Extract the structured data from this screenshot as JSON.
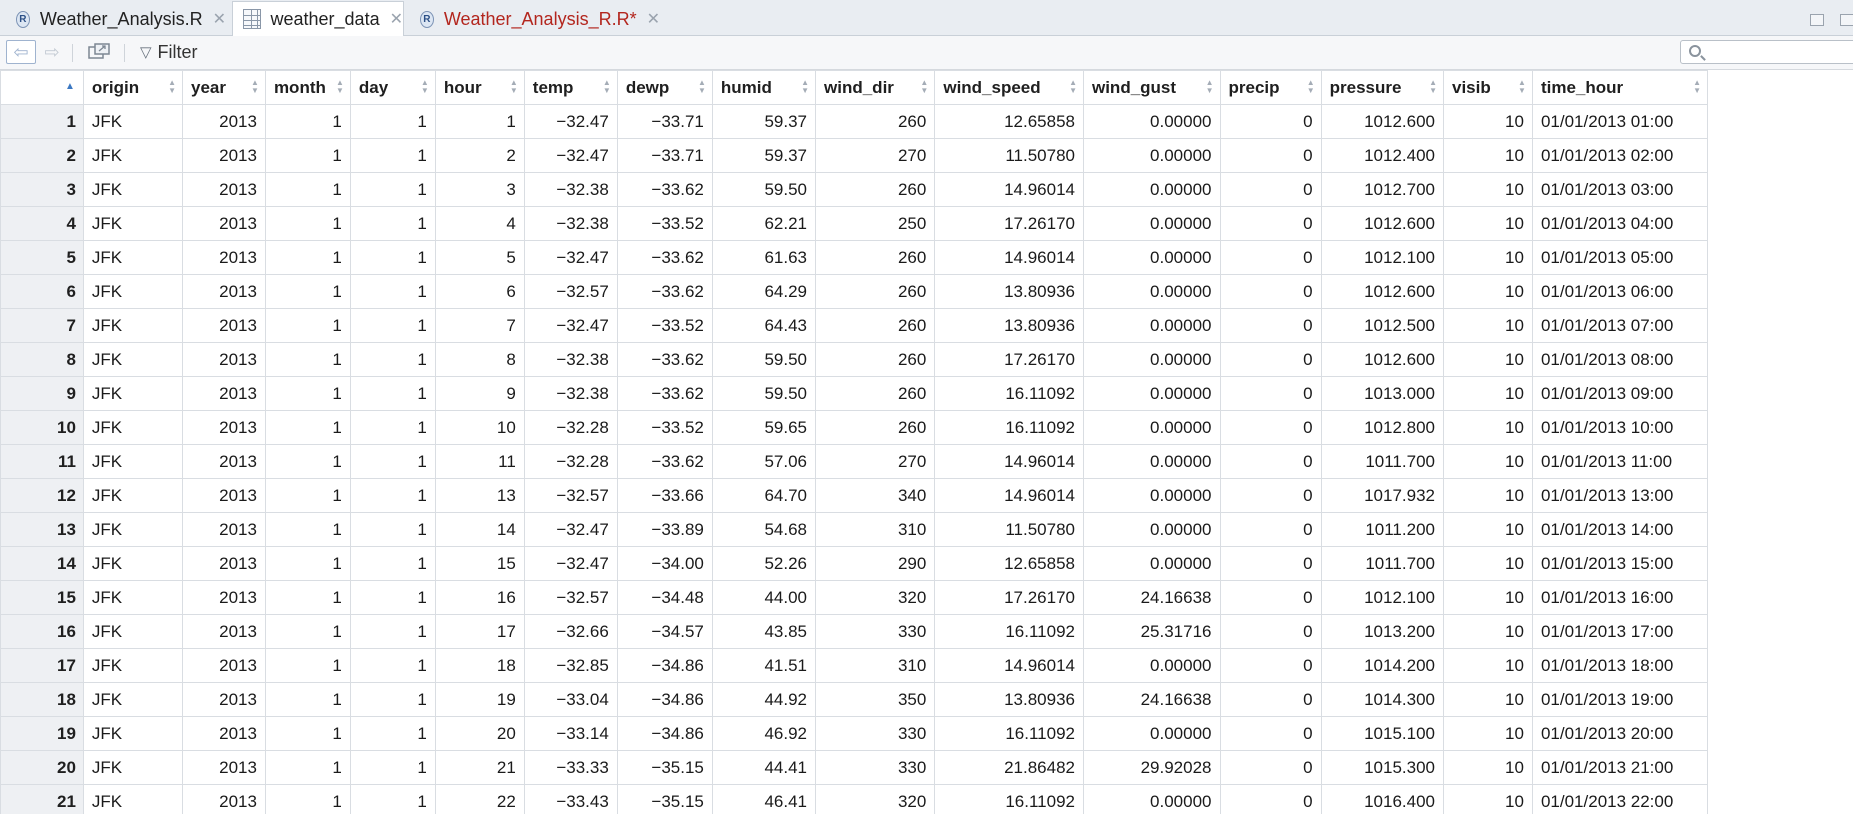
{
  "tabs": [
    {
      "label": "Weather_Analysis.R",
      "icon": "r-file-icon",
      "active": false,
      "modified": false
    },
    {
      "label": "weather_data",
      "icon": "data-grid-icon",
      "active": true,
      "modified": false
    },
    {
      "label": "Weather_Analysis_R.R*",
      "icon": "r-file-icon",
      "active": false,
      "modified": true
    }
  ],
  "toolbar": {
    "filter_label": "Filter",
    "search_value": ""
  },
  "table": {
    "columns": [
      "origin",
      "year",
      "month",
      "day",
      "hour",
      "temp",
      "dewp",
      "humid",
      "wind_dir",
      "wind_speed",
      "wind_gust",
      "precip",
      "pressure",
      "visib",
      "time_hour"
    ],
    "rows": [
      [
        "1",
        "JFK",
        "2013",
        "1",
        "1",
        "1",
        "−32.47",
        "−33.71",
        "59.37",
        "260",
        "12.65858",
        "0.00000",
        "0",
        "1012.600",
        "10",
        "01/01/2013 01:00"
      ],
      [
        "2",
        "JFK",
        "2013",
        "1",
        "1",
        "2",
        "−32.47",
        "−33.71",
        "59.37",
        "270",
        "11.50780",
        "0.00000",
        "0",
        "1012.400",
        "10",
        "01/01/2013 02:00"
      ],
      [
        "3",
        "JFK",
        "2013",
        "1",
        "1",
        "3",
        "−32.38",
        "−33.62",
        "59.50",
        "260",
        "14.96014",
        "0.00000",
        "0",
        "1012.700",
        "10",
        "01/01/2013 03:00"
      ],
      [
        "4",
        "JFK",
        "2013",
        "1",
        "1",
        "4",
        "−32.38",
        "−33.52",
        "62.21",
        "250",
        "17.26170",
        "0.00000",
        "0",
        "1012.600",
        "10",
        "01/01/2013 04:00"
      ],
      [
        "5",
        "JFK",
        "2013",
        "1",
        "1",
        "5",
        "−32.47",
        "−33.62",
        "61.63",
        "260",
        "14.96014",
        "0.00000",
        "0",
        "1012.100",
        "10",
        "01/01/2013 05:00"
      ],
      [
        "6",
        "JFK",
        "2013",
        "1",
        "1",
        "6",
        "−32.57",
        "−33.62",
        "64.29",
        "260",
        "13.80936",
        "0.00000",
        "0",
        "1012.600",
        "10",
        "01/01/2013 06:00"
      ],
      [
        "7",
        "JFK",
        "2013",
        "1",
        "1",
        "7",
        "−32.47",
        "−33.52",
        "64.43",
        "260",
        "13.80936",
        "0.00000",
        "0",
        "1012.500",
        "10",
        "01/01/2013 07:00"
      ],
      [
        "8",
        "JFK",
        "2013",
        "1",
        "1",
        "8",
        "−32.38",
        "−33.62",
        "59.50",
        "260",
        "17.26170",
        "0.00000",
        "0",
        "1012.600",
        "10",
        "01/01/2013 08:00"
      ],
      [
        "9",
        "JFK",
        "2013",
        "1",
        "1",
        "9",
        "−32.38",
        "−33.62",
        "59.50",
        "260",
        "16.11092",
        "0.00000",
        "0",
        "1013.000",
        "10",
        "01/01/2013 09:00"
      ],
      [
        "10",
        "JFK",
        "2013",
        "1",
        "1",
        "10",
        "−32.28",
        "−33.52",
        "59.65",
        "260",
        "16.11092",
        "0.00000",
        "0",
        "1012.800",
        "10",
        "01/01/2013 10:00"
      ],
      [
        "11",
        "JFK",
        "2013",
        "1",
        "1",
        "11",
        "−32.28",
        "−33.62",
        "57.06",
        "270",
        "14.96014",
        "0.00000",
        "0",
        "1011.700",
        "10",
        "01/01/2013 11:00"
      ],
      [
        "12",
        "JFK",
        "2013",
        "1",
        "1",
        "13",
        "−32.57",
        "−33.66",
        "64.70",
        "340",
        "14.96014",
        "0.00000",
        "0",
        "1017.932",
        "10",
        "01/01/2013 13:00"
      ],
      [
        "13",
        "JFK",
        "2013",
        "1",
        "1",
        "14",
        "−32.47",
        "−33.89",
        "54.68",
        "310",
        "11.50780",
        "0.00000",
        "0",
        "1011.200",
        "10",
        "01/01/2013 14:00"
      ],
      [
        "14",
        "JFK",
        "2013",
        "1",
        "1",
        "15",
        "−32.47",
        "−34.00",
        "52.26",
        "290",
        "12.65858",
        "0.00000",
        "0",
        "1011.700",
        "10",
        "01/01/2013 15:00"
      ],
      [
        "15",
        "JFK",
        "2013",
        "1",
        "1",
        "16",
        "−32.57",
        "−34.48",
        "44.00",
        "320",
        "17.26170",
        "24.16638",
        "0",
        "1012.100",
        "10",
        "01/01/2013 16:00"
      ],
      [
        "16",
        "JFK",
        "2013",
        "1",
        "1",
        "17",
        "−32.66",
        "−34.57",
        "43.85",
        "330",
        "16.11092",
        "25.31716",
        "0",
        "1013.200",
        "10",
        "01/01/2013 17:00"
      ],
      [
        "17",
        "JFK",
        "2013",
        "1",
        "1",
        "18",
        "−32.85",
        "−34.86",
        "41.51",
        "310",
        "14.96014",
        "0.00000",
        "0",
        "1014.200",
        "10",
        "01/01/2013 18:00"
      ],
      [
        "18",
        "JFK",
        "2013",
        "1",
        "1",
        "19",
        "−33.04",
        "−34.86",
        "44.92",
        "350",
        "13.80936",
        "24.16638",
        "0",
        "1014.300",
        "10",
        "01/01/2013 19:00"
      ],
      [
        "19",
        "JFK",
        "2013",
        "1",
        "1",
        "20",
        "−33.14",
        "−34.86",
        "46.92",
        "330",
        "16.11092",
        "0.00000",
        "0",
        "1015.100",
        "10",
        "01/01/2013 20:00"
      ],
      [
        "20",
        "JFK",
        "2013",
        "1",
        "1",
        "21",
        "−33.33",
        "−35.15",
        "44.41",
        "330",
        "21.86482",
        "29.92028",
        "0",
        "1015.300",
        "10",
        "01/01/2013 21:00"
      ],
      [
        "21",
        "JFK",
        "2013",
        "1",
        "1",
        "22",
        "−33.43",
        "−35.15",
        "46.41",
        "320",
        "16.11092",
        "0.00000",
        "0",
        "1016.400",
        "10",
        "01/01/2013 22:00"
      ]
    ]
  }
}
